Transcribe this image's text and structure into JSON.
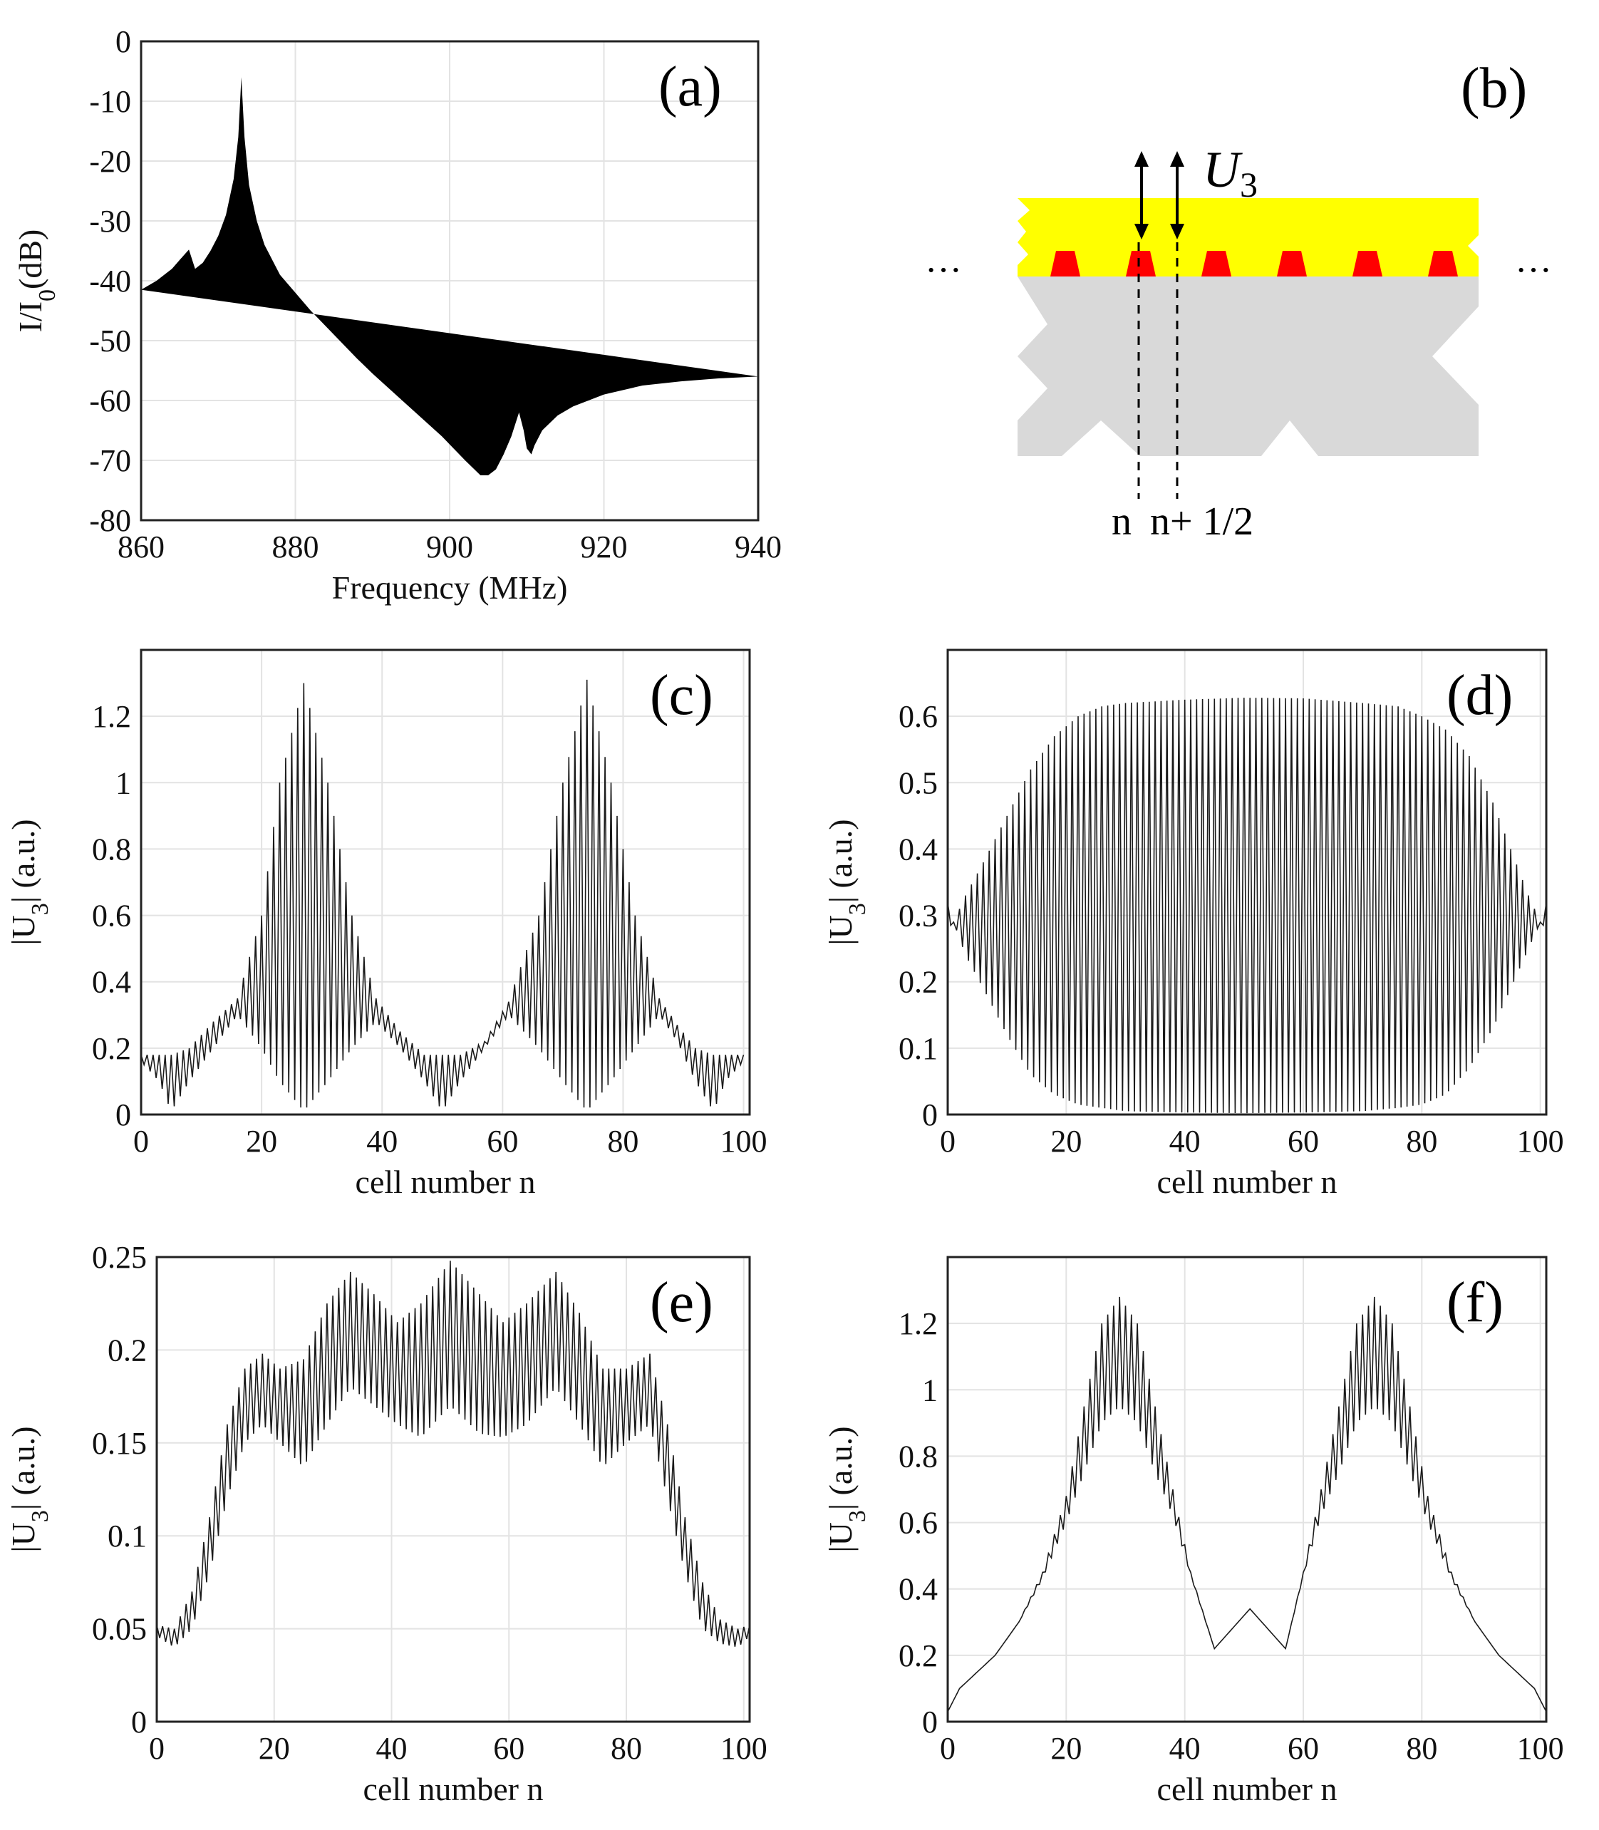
{
  "chart_data": [
    {
      "id": "a",
      "type": "line",
      "panel_label": "(a)",
      "xlabel": "Frequency (MHz)",
      "ylabel": "I/I",
      "ylabel_sub": "0",
      "ylabel_suffix": "(dB)",
      "xlim": [
        860,
        940
      ],
      "ylim": [
        -80,
        0
      ],
      "xticks": [
        860,
        880,
        900,
        920,
        940
      ],
      "yticks": [
        0,
        -10,
        -20,
        -30,
        -40,
        -50,
        -60,
        -70,
        -80
      ],
      "grid": true,
      "series": [
        {
          "x": [
            860,
            862,
            864,
            865.5,
            866.2,
            867,
            868,
            869,
            870,
            871,
            872,
            872.6,
            873,
            873.4,
            874,
            875,
            876,
            878,
            880,
            882,
            885,
            888,
            890,
            893,
            896,
            899,
            902,
            904,
            905,
            906,
            907,
            908,
            909,
            909.6,
            910,
            910.6,
            911,
            912,
            914,
            916,
            920,
            925,
            930,
            935,
            940
          ],
          "y": [
            -41.5,
            -40,
            -38,
            -35.8,
            -34.8,
            -38,
            -37,
            -35,
            -32.5,
            -29,
            -23,
            -16,
            -6,
            -16,
            -24,
            -30,
            -34,
            -39,
            -42,
            -45,
            -49,
            -53,
            -55.5,
            -59,
            -62.5,
            -66,
            -70,
            -72.5,
            -72.5,
            -71.5,
            -69,
            -66,
            -62,
            -65,
            -68,
            -69,
            -67.5,
            -65,
            -62.5,
            -61,
            -59,
            -57.5,
            -56.8,
            -56.3,
            -56
          ]
        }
      ]
    },
    {
      "id": "c",
      "type": "line",
      "panel_label": "(c)",
      "xlabel": "cell number n",
      "ylabel": "|U",
      "ylabel_sub": "3",
      "ylabel_suffix": "| (a.u.)",
      "xlim": [
        0,
        101
      ],
      "ylim": [
        0,
        1.4
      ],
      "xticks": [
        0,
        20,
        40,
        60,
        80,
        100
      ],
      "yticks": [
        0,
        0.2,
        0.4,
        0.6,
        0.8,
        1,
        1.2
      ],
      "grid": true,
      "envelope": {
        "n": [
          0,
          3,
          5,
          8,
          12,
          16,
          20,
          23,
          27,
          31,
          35,
          39,
          43,
          47,
          50,
          53,
          57,
          61,
          66,
          70,
          74,
          78,
          82,
          86,
          89,
          92,
          95,
          97,
          100
        ],
        "upper": [
          0.18,
          0.18,
          0.18,
          0.2,
          0.28,
          0.35,
          0.6,
          1.0,
          1.3,
          1.0,
          0.6,
          0.35,
          0.25,
          0.18,
          0.18,
          0.18,
          0.22,
          0.34,
          0.6,
          1.0,
          1.31,
          1.0,
          0.6,
          0.35,
          0.27,
          0.2,
          0.18,
          0.18,
          0.18
        ],
        "lower": [
          0.16,
          0.1,
          0.01,
          0.1,
          0.2,
          0.3,
          0.2,
          0.1,
          0.01,
          0.1,
          0.2,
          0.28,
          0.2,
          0.1,
          0.01,
          0.1,
          0.2,
          0.3,
          0.2,
          0.1,
          0.01,
          0.1,
          0.2,
          0.3,
          0.22,
          0.1,
          0.01,
          0.1,
          0.16
        ]
      }
    },
    {
      "id": "d",
      "type": "line",
      "panel_label": "(d)",
      "xlabel": "cell number n",
      "ylabel": "|U",
      "ylabel_sub": "3",
      "ylabel_suffix": "| (a.u.)",
      "xlim": [
        0,
        101
      ],
      "ylim": [
        0,
        0.7
      ],
      "xticks": [
        0,
        20,
        40,
        60,
        80,
        100
      ],
      "yticks": [
        0,
        0.1,
        0.2,
        0.3,
        0.4,
        0.5,
        0.6
      ],
      "grid": true,
      "envelope": {
        "n": [
          0,
          1,
          3,
          6,
          10,
          14,
          18,
          22,
          26,
          30,
          40,
          50,
          60,
          70,
          76,
          80,
          84,
          88,
          92,
          95,
          98,
          100,
          101
        ],
        "upper": [
          0.32,
          0.29,
          0.33,
          0.38,
          0.45,
          0.52,
          0.57,
          0.6,
          0.615,
          0.62,
          0.625,
          0.628,
          0.627,
          0.62,
          0.615,
          0.6,
          0.58,
          0.54,
          0.47,
          0.4,
          0.33,
          0.29,
          0.32
        ],
        "lower": [
          0.28,
          0.29,
          0.24,
          0.19,
          0.12,
          0.06,
          0.03,
          0.015,
          0.01,
          0.005,
          0.003,
          0.002,
          0.003,
          0.005,
          0.01,
          0.015,
          0.03,
          0.07,
          0.13,
          0.19,
          0.25,
          0.29,
          0.28
        ]
      }
    },
    {
      "id": "e",
      "type": "line",
      "panel_label": "(e)",
      "xlabel": "cell number n",
      "ylabel": "|U",
      "ylabel_sub": "3",
      "ylabel_suffix": "| (a.u.)",
      "xlim": [
        0,
        101
      ],
      "ylim": [
        0,
        0.25
      ],
      "xticks": [
        0,
        20,
        40,
        60,
        80,
        100
      ],
      "yticks": [
        0,
        0.05,
        0.1,
        0.15,
        0.2,
        0.25
      ],
      "grid": true,
      "envelope": {
        "n": [
          0,
          3,
          6,
          9,
          12,
          15,
          18,
          21,
          25,
          29,
          33,
          37,
          41,
          45,
          50,
          55,
          59,
          63,
          68,
          72,
          76,
          80,
          84,
          87,
          90,
          93,
          96,
          99,
          101
        ],
        "upper": [
          0.052,
          0.05,
          0.07,
          0.11,
          0.16,
          0.19,
          0.198,
          0.19,
          0.195,
          0.225,
          0.242,
          0.23,
          0.215,
          0.225,
          0.248,
          0.23,
          0.215,
          0.225,
          0.242,
          0.22,
          0.19,
          0.19,
          0.198,
          0.16,
          0.11,
          0.075,
          0.055,
          0.05,
          0.052
        ],
        "lower": [
          0.046,
          0.04,
          0.05,
          0.08,
          0.12,
          0.15,
          0.16,
          0.15,
          0.137,
          0.16,
          0.18,
          0.17,
          0.16,
          0.153,
          0.17,
          0.155,
          0.153,
          0.16,
          0.18,
          0.16,
          0.137,
          0.15,
          0.16,
          0.12,
          0.08,
          0.05,
          0.042,
          0.04,
          0.046
        ]
      }
    },
    {
      "id": "f",
      "type": "line",
      "panel_label": "(f)",
      "xlabel": "cell number n",
      "ylabel": "|U",
      "ylabel_sub": "3",
      "ylabel_suffix": "| (a.u.)",
      "xlim": [
        0,
        101
      ],
      "ylim": [
        0,
        1.4
      ],
      "xticks": [
        0,
        20,
        40,
        60,
        80,
        100
      ],
      "yticks": [
        0,
        0.2,
        0.4,
        0.6,
        0.8,
        1,
        1.2
      ],
      "grid": true,
      "envelope": {
        "n": [
          0,
          2,
          5,
          8,
          12,
          16,
          20,
          23,
          26,
          29,
          32,
          35,
          38,
          41,
          45,
          48,
          51,
          54,
          57,
          60,
          63,
          66,
          69,
          72,
          75,
          78,
          81,
          85,
          89,
          93,
          96,
          99,
          101
        ],
        "upper": [
          0.03,
          0.1,
          0.15,
          0.2,
          0.3,
          0.45,
          0.68,
          0.95,
          1.2,
          1.28,
          1.2,
          0.95,
          0.7,
          0.45,
          0.22,
          0.28,
          0.34,
          0.28,
          0.22,
          0.45,
          0.7,
          0.95,
          1.2,
          1.28,
          1.2,
          0.95,
          0.68,
          0.45,
          0.3,
          0.2,
          0.15,
          0.1,
          0.03
        ],
        "lower": [
          0.03,
          0.1,
          0.15,
          0.2,
          0.3,
          0.43,
          0.6,
          0.75,
          0.9,
          0.95,
          0.9,
          0.75,
          0.62,
          0.44,
          0.22,
          0.28,
          0.34,
          0.28,
          0.22,
          0.44,
          0.62,
          0.75,
          0.9,
          0.95,
          0.9,
          0.75,
          0.6,
          0.43,
          0.3,
          0.2,
          0.15,
          0.1,
          0.03
        ]
      }
    }
  ],
  "diagram_b": {
    "panel_label": "(b)",
    "symbol": "U",
    "symbol_sub": "3",
    "ellipsis": "···",
    "label_n": "n",
    "label_n_half": "n+ 1/2",
    "colors": {
      "layer_top": "#ffff00",
      "electrode": "#ff0000",
      "substrate": "#d9d9d9"
    }
  }
}
